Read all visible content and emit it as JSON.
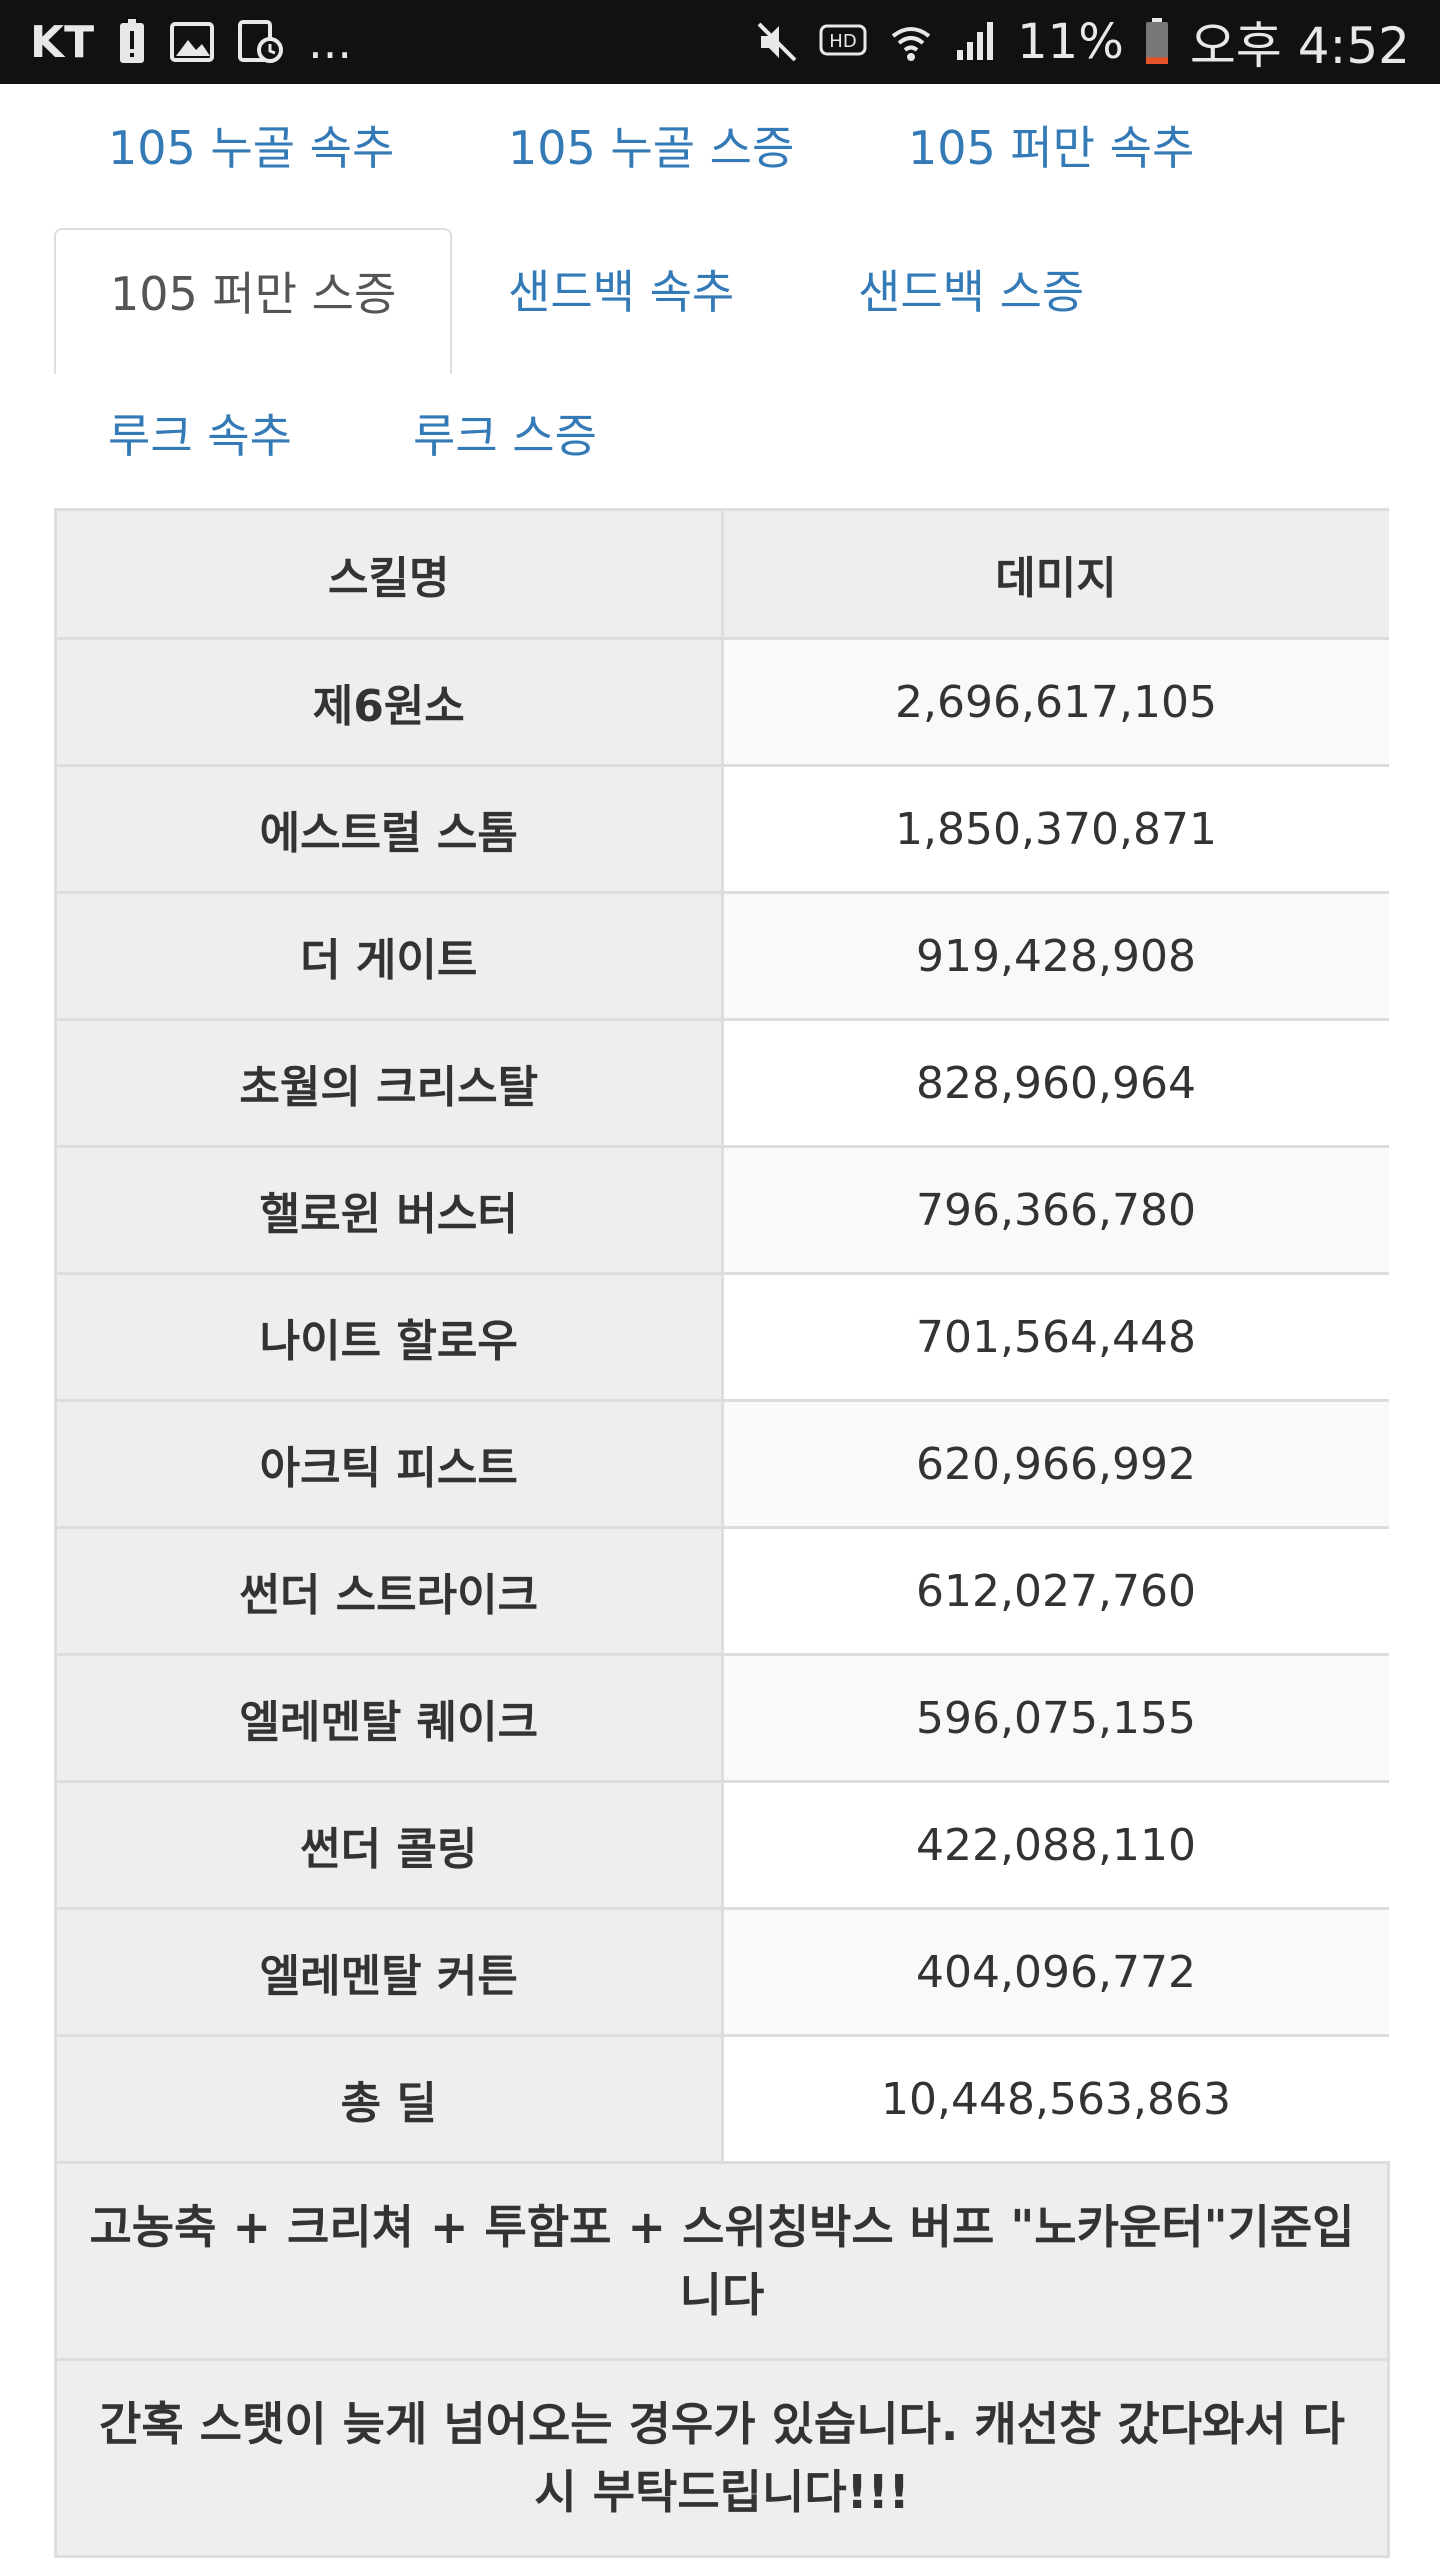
{
  "status_bar": {
    "carrier": "KT",
    "more": "...",
    "hd_label": "HD",
    "battery": "11%",
    "time": "오후 4:52",
    "battery_level": 0.11
  },
  "tabs": [
    {
      "label": "105 누골 속추",
      "active": false
    },
    {
      "label": "105 누골 스증",
      "active": false
    },
    {
      "label": "105 퍼만 속추",
      "active": false
    },
    {
      "label": "105 퍼만 스증",
      "active": true
    },
    {
      "label": "샌드백 속추",
      "active": false
    },
    {
      "label": "샌드백 스증",
      "active": false
    },
    {
      "label": "루크 속추",
      "active": false
    },
    {
      "label": "루크 스증",
      "active": false
    }
  ],
  "table": {
    "headers": [
      "스킬명",
      "데미지"
    ],
    "rows": [
      {
        "name": "제6원소",
        "damage": "2,696,617,105"
      },
      {
        "name": "에스트럴 스톰",
        "damage": "1,850,370,871"
      },
      {
        "name": "더 게이트",
        "damage": "919,428,908"
      },
      {
        "name": "초월의 크리스탈",
        "damage": "828,960,964"
      },
      {
        "name": "핼로윈 버스터",
        "damage": "796,366,780"
      },
      {
        "name": "나이트 할로우",
        "damage": "701,564,448"
      },
      {
        "name": "아크틱 피스트",
        "damage": "620,966,992"
      },
      {
        "name": "썬더 스트라이크",
        "damage": "612,027,760"
      },
      {
        "name": "엘레멘탈 퀘이크",
        "damage": "596,075,155"
      },
      {
        "name": "썬더 콜링",
        "damage": "422,088,110"
      },
      {
        "name": "엘레멘탈 커튼",
        "damage": "404,096,772"
      },
      {
        "name": "총 딜",
        "damage": "10,448,563,863"
      }
    ],
    "notes": [
      "고농축 + 크리쳐 + 투함포 + 스위칭박스 버프 \"노카운터\"기준입니다",
      "간혹 스탯이 늦게 넘어오는 경우가 있습니다. 캐선창 갔다와서 다시 부탁드립니다!!!"
    ]
  },
  "colors": {
    "link": "#337ab7",
    "active_tab_text": "#555555",
    "header_bg": "#eeeeee",
    "border": "#dddddd",
    "status_bar_bg": "#111111",
    "battery_low": "#e8542a"
  },
  "icons": {
    "status_left": [
      "alert-icon",
      "image-icon",
      "schedule-icon"
    ],
    "status_right": [
      "mute-icon",
      "hd-icon",
      "wifi-icon",
      "signal-icon",
      "battery-icon"
    ]
  }
}
